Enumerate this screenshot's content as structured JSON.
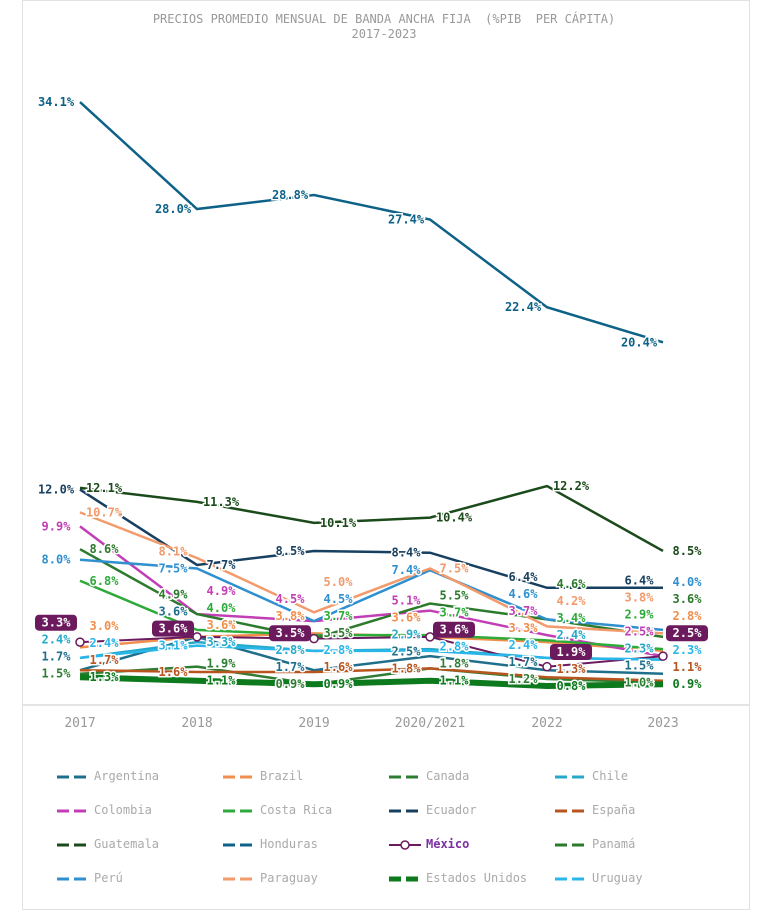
{
  "chart_data": {
    "type": "line",
    "title": "PRECIOS PROMEDIO MENSUAL DE BANDA ANCHA FIJA  (%PIB  PER CÁPITA)",
    "subtitle": "2017-2023",
    "categories": [
      "2017",
      "2018",
      "2019",
      "2020/2021",
      "2022",
      "2023"
    ],
    "ylim": [
      0,
      36.5
    ],
    "grid": false,
    "legend_placement": "bottom",
    "series": [
      {
        "name": "Argentina",
        "color": "#1f6f8b",
        "values": [
          1.7,
          3.6,
          1.7,
          2.5,
          1.7,
          1.5
        ]
      },
      {
        "name": "Brazil",
        "color": "#f28e4b",
        "values": [
          3.0,
          3.6,
          3.8,
          3.6,
          3.3,
          2.8
        ]
      },
      {
        "name": "Canada",
        "color": "#2e7d32",
        "values": [
          1.5,
          1.9,
          0.9,
          1.8,
          1.2,
          1.0
        ]
      },
      {
        "name": "Chile",
        "color": "#26a9c9",
        "values": [
          2.4,
          3.3,
          2.8,
          2.9,
          2.4,
          2.3
        ]
      },
      {
        "name": "Colombia",
        "color": "#c13eb5",
        "values": [
          9.9,
          4.9,
          4.5,
          5.1,
          3.7,
          2.5
        ]
      },
      {
        "name": "Costa Rica",
        "color": "#2eaa3a",
        "values": [
          6.8,
          4.0,
          3.7,
          3.7,
          3.4,
          2.9
        ]
      },
      {
        "name": "Ecuador",
        "color": "#173f5f",
        "values": [
          12.0,
          7.7,
          8.5,
          8.4,
          6.4,
          6.4
        ]
      },
      {
        "name": "España",
        "color": "#b8551f",
        "values": [
          1.7,
          1.6,
          1.6,
          1.8,
          1.3,
          1.1
        ]
      },
      {
        "name": "Guatemala",
        "color": "#1b4a1b",
        "values": [
          12.1,
          11.3,
          10.1,
          10.4,
          12.2,
          8.5
        ]
      },
      {
        "name": "Honduras",
        "color": "#0e6287",
        "values": [
          34.1,
          28.0,
          28.8,
          27.4,
          22.4,
          20.4
        ]
      },
      {
        "name": "México",
        "color": "#6b1a5e",
        "values": [
          3.3,
          3.6,
          3.5,
          3.6,
          1.9,
          2.5
        ]
      },
      {
        "name": "Panamá",
        "color": "#2c7a2c",
        "values": [
          8.6,
          4.9,
          3.5,
          5.5,
          4.6,
          3.6
        ]
      },
      {
        "name": "Perú",
        "color": "#2f8fcf",
        "values": [
          8.0,
          7.5,
          4.5,
          7.4,
          4.6,
          4.0
        ]
      },
      {
        "name": "Paraguay",
        "color": "#f29a6b",
        "values": [
          10.7,
          8.1,
          5.0,
          7.5,
          4.2,
          3.8
        ]
      },
      {
        "name": "Estados Unidos",
        "color": "#0d7a1e",
        "values": [
          1.3,
          1.1,
          0.9,
          1.1,
          0.8,
          0.9
        ]
      },
      {
        "name": "Uruguay",
        "color": "#29b6e8",
        "values": [
          2.4,
          3.1,
          2.8,
          2.8,
          2.4,
          2.3
        ]
      }
    ]
  }
}
